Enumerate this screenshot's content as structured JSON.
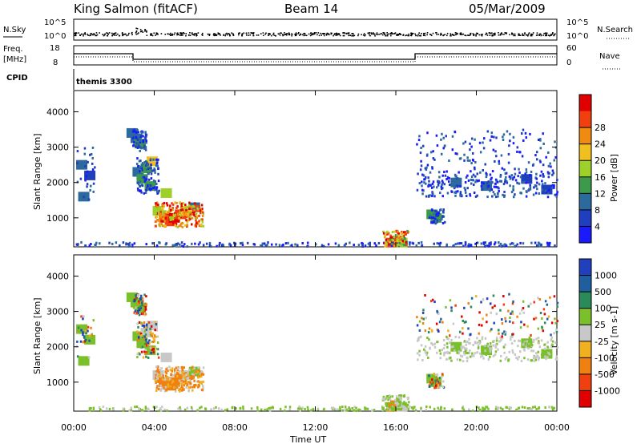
{
  "header": {
    "station": "King Salmon (fitACF)",
    "beam": "Beam 14",
    "date": "05/Mar/2009"
  },
  "strips": {
    "nsky_label": "N.Sky",
    "nsearch_label": "N.Search",
    "freq_label_1": "Freq.",
    "freq_label_2": "[MHz]",
    "nave_label": "Nave",
    "cpid_label": "CPID",
    "cpid_value": "themis 3300",
    "noise_ticks": [
      "10^5",
      "10^0"
    ],
    "freq_ticks": [
      "18",
      "8"
    ],
    "nave_ticks": [
      "60",
      "0"
    ]
  },
  "colors": {
    "power_scale": [
      "#1a1aff",
      "#1f3fbf",
      "#2c6a9e",
      "#3c9a4a",
      "#9ed02a",
      "#f0c020",
      "#f08a10",
      "#f04010",
      "#e00000"
    ],
    "velocity_scale": [
      "#2040c0",
      "#1f5fa0",
      "#2a8a5a",
      "#7ac02a",
      "#c8c8c8",
      "#f0b020",
      "#f08010",
      "#f04010",
      "#e00000"
    ]
  },
  "chart_data": [
    {
      "type": "heatmap",
      "name": "power",
      "x_axis": "time",
      "xlim": [
        0,
        24
      ],
      "ylim": [
        180,
        4600
      ],
      "ylabel": "Slant Range [km]",
      "yticks": [
        1000,
        2000,
        3000,
        4000
      ],
      "colorbar_label": "Power [dB]",
      "colorbar_ticks": [
        "4",
        "8",
        "12",
        "16",
        "20",
        "24",
        "28"
      ],
      "cells": [
        {
          "t": 0.4,
          "r": 2500,
          "v": 6
        },
        {
          "t": 0.5,
          "r": 1600,
          "v": 7
        },
        {
          "t": 0.8,
          "r": 2200,
          "v": 5
        },
        {
          "t": 2.9,
          "r": 3400,
          "v": 6
        },
        {
          "t": 3.1,
          "r": 3250,
          "v": 8
        },
        {
          "t": 3.3,
          "r": 3100,
          "v": 10
        },
        {
          "t": 3.2,
          "r": 2300,
          "v": 9
        },
        {
          "t": 3.4,
          "r": 2100,
          "v": 12
        },
        {
          "t": 3.6,
          "r": 2400,
          "v": 13
        },
        {
          "t": 3.9,
          "r": 2600,
          "v": 18
        },
        {
          "t": 3.8,
          "r": 1900,
          "v": 10
        },
        {
          "t": 4.2,
          "r": 1200,
          "v": 14
        },
        {
          "t": 4.5,
          "r": 1000,
          "v": 22
        },
        {
          "t": 4.8,
          "r": 900,
          "v": 28
        },
        {
          "t": 5.0,
          "r": 1000,
          "v": 30
        },
        {
          "t": 5.3,
          "r": 1100,
          "v": 26
        },
        {
          "t": 5.6,
          "r": 1200,
          "v": 18
        },
        {
          "t": 6.0,
          "r": 1300,
          "v": 8
        },
        {
          "t": 4.6,
          "r": 1700,
          "v": 16
        },
        {
          "t": 15.8,
          "r": 300,
          "v": 26
        },
        {
          "t": 16.0,
          "r": 350,
          "v": 28
        },
        {
          "t": 16.3,
          "r": 300,
          "v": 14
        },
        {
          "t": 17.8,
          "r": 1100,
          "v": 10
        },
        {
          "t": 18.0,
          "r": 1000,
          "v": 12
        },
        {
          "t": 19.0,
          "r": 2000,
          "v": 6
        },
        {
          "t": 20.5,
          "r": 1900,
          "v": 7
        },
        {
          "t": 22.5,
          "r": 2100,
          "v": 5
        },
        {
          "t": 23.5,
          "r": 1800,
          "v": 4
        }
      ]
    },
    {
      "type": "heatmap",
      "name": "velocity",
      "x_axis": "time",
      "xlim": [
        0,
        24
      ],
      "ylim": [
        180,
        4600
      ],
      "ylabel": "Slant Range [km]",
      "yticks": [
        1000,
        2000,
        3000,
        4000
      ],
      "xlabel": "Time UT",
      "xticks": [
        "00:00",
        "04:00",
        "08:00",
        "12:00",
        "16:00",
        "20:00",
        "00:00"
      ],
      "colorbar_label": "Velocity [m s-1]",
      "colorbar_ticks": [
        "1000",
        "500",
        "100",
        "25",
        "-25",
        "-100",
        "-500",
        "-1000"
      ]
    }
  ]
}
